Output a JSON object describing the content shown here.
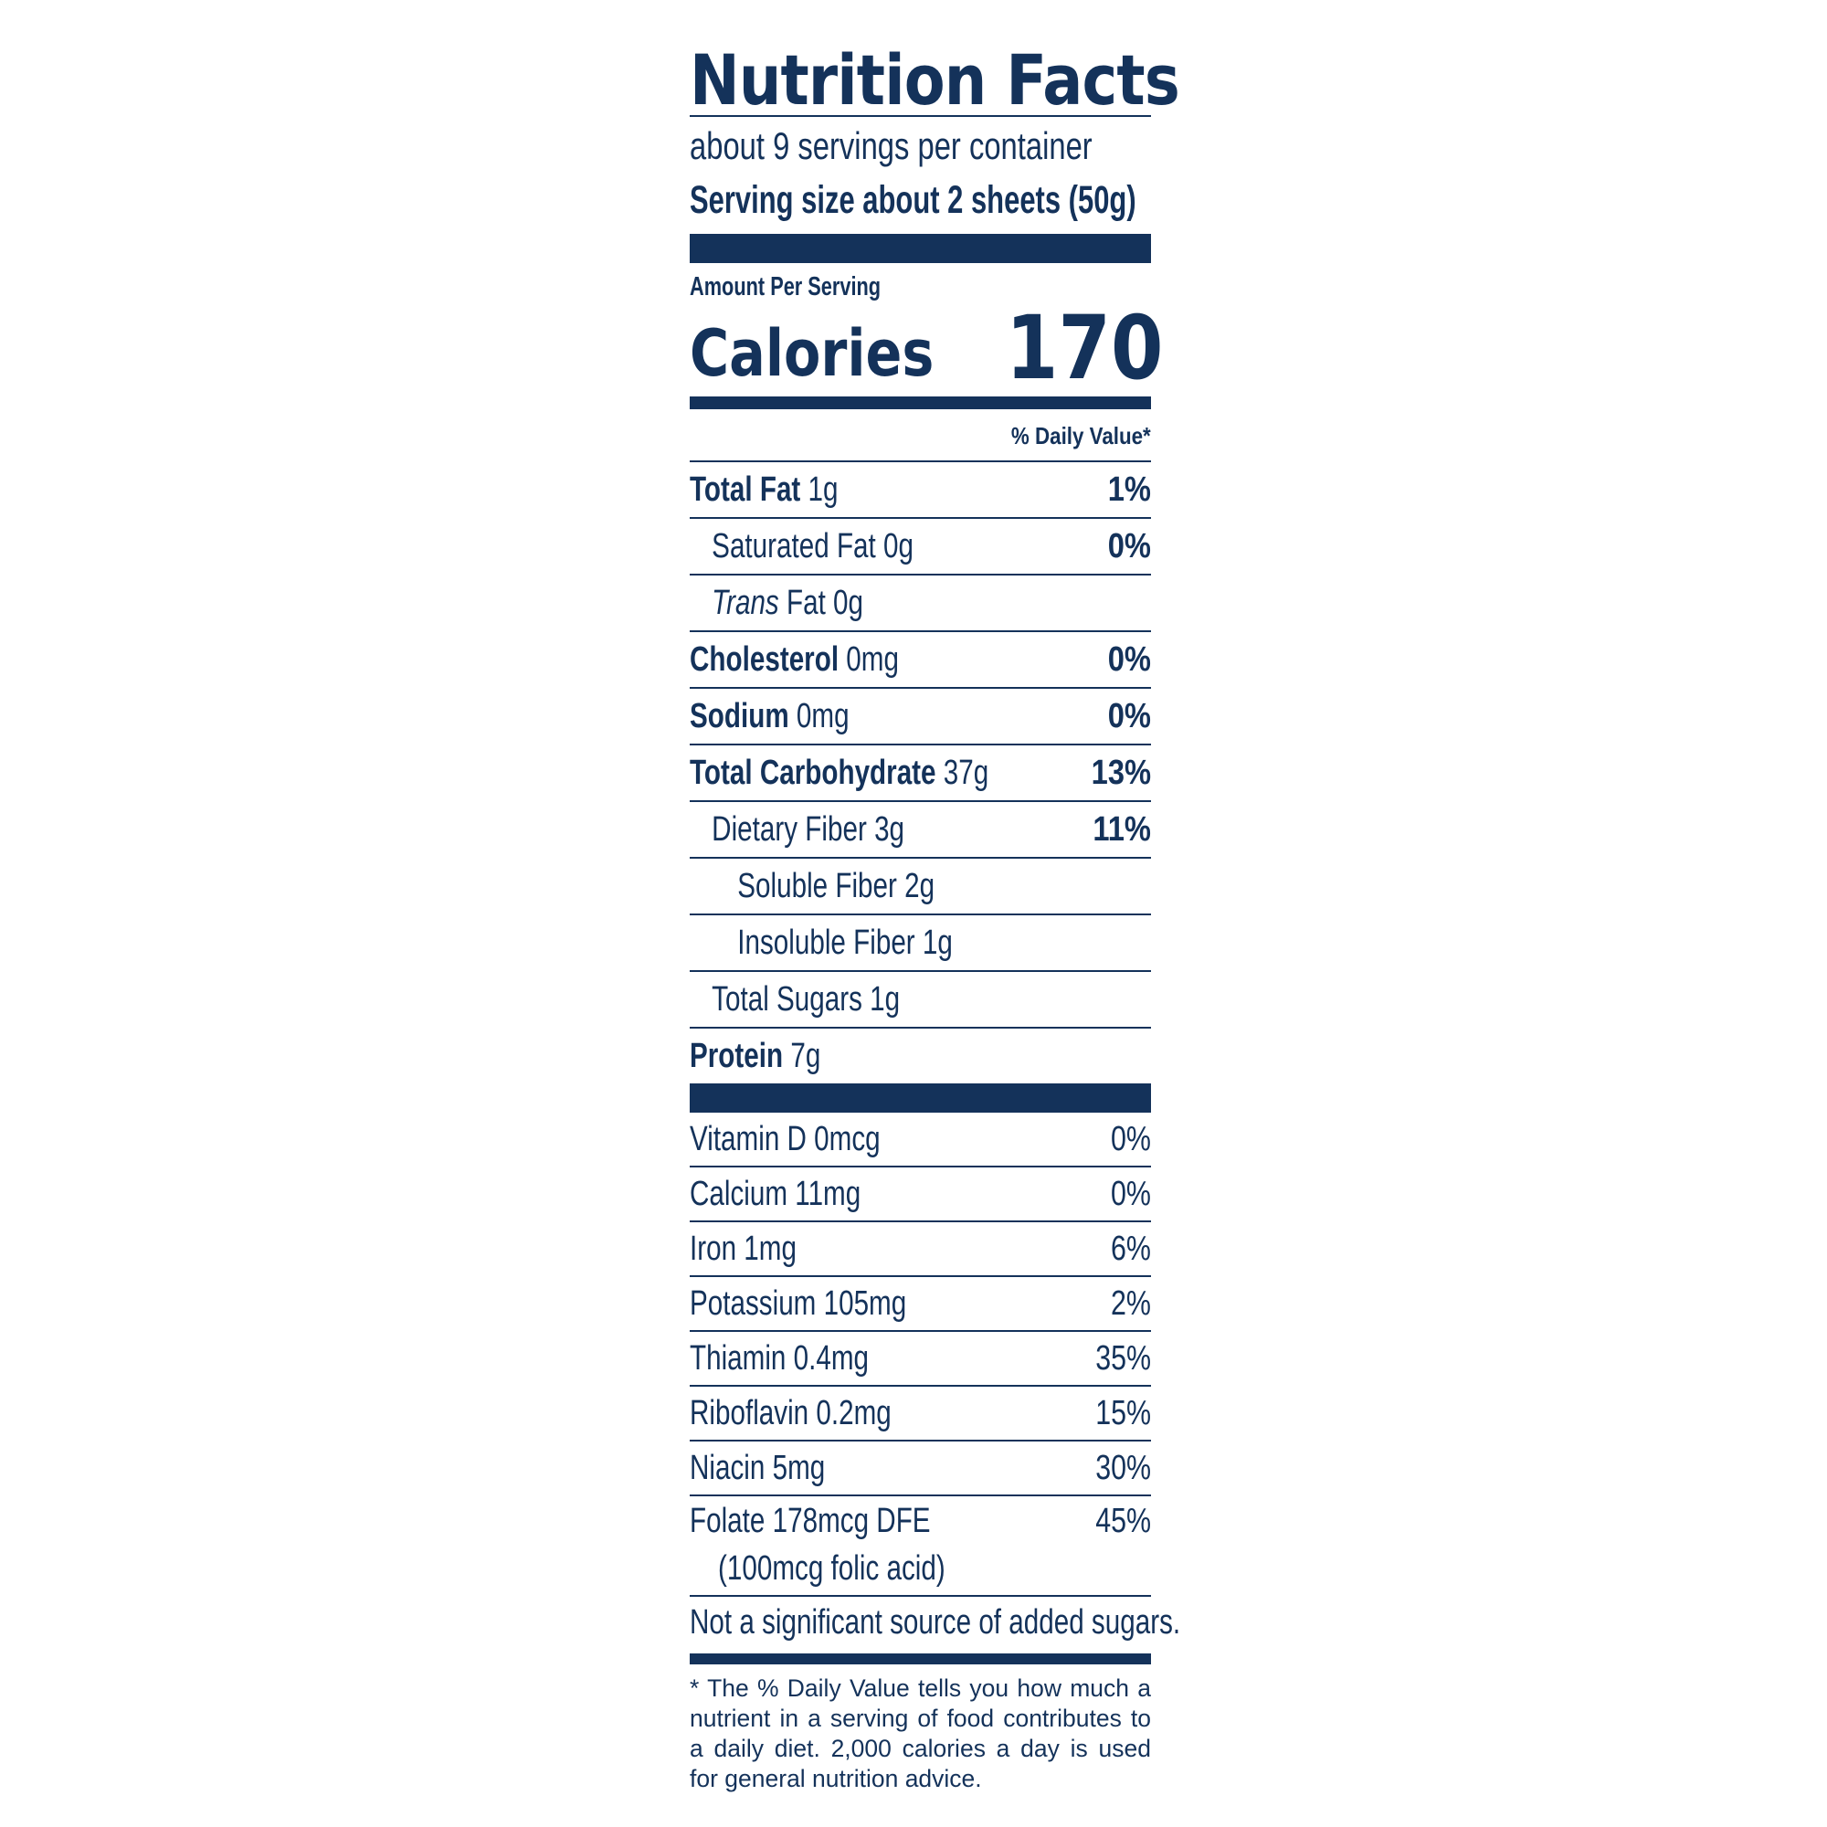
{
  "title": "Nutrition Facts",
  "servings_per_container": "about 9 servings per container",
  "serving_size": "Serving size about 2 sheets (50g)",
  "amount_per_serving": "Amount Per Serving",
  "calories": {
    "label": "Calories",
    "value": "170"
  },
  "daily_value_header": "% Daily Value*",
  "nutrients": [
    {
      "name": "Total Fat",
      "amount": "1g",
      "dv": "1%"
    },
    {
      "name": "Saturated Fat",
      "amount": "0g",
      "dv": "0%"
    },
    {
      "name": "Trans",
      "amount": "Fat 0g",
      "dv": ""
    },
    {
      "name": "Cholesterol",
      "amount": "0mg",
      "dv": "0%"
    },
    {
      "name": "Sodium",
      "amount": "0mg",
      "dv": "0%"
    },
    {
      "name": "Total Carbohydrate",
      "amount": "37g",
      "dv": "13%"
    },
    {
      "name": "Dietary Fiber",
      "amount": "3g",
      "dv": "11%"
    },
    {
      "name": "Soluble Fiber",
      "amount": "2g",
      "dv": ""
    },
    {
      "name": "Insoluble Fiber",
      "amount": "1g",
      "dv": ""
    },
    {
      "name": "Total Sugars",
      "amount": "1g",
      "dv": ""
    },
    {
      "name": "Protein",
      "amount": "7g",
      "dv": ""
    }
  ],
  "vitamins": [
    {
      "label": "Vitamin D 0mcg",
      "dv": "0%"
    },
    {
      "label": "Calcium 11mg",
      "dv": "0%"
    },
    {
      "label": "Iron 1mg",
      "dv": "6%"
    },
    {
      "label": "Potassium 105mg",
      "dv": "2%"
    },
    {
      "label": "Thiamin 0.4mg",
      "dv": "35%"
    },
    {
      "label": "Riboflavin 0.2mg",
      "dv": "15%"
    },
    {
      "label": "Niacin 5mg",
      "dv": "30%"
    }
  ],
  "folate": {
    "label": "Folate 178mcg DFE",
    "sub": "(100mcg folic acid)",
    "dv": "45%"
  },
  "added_sugars_note": "Not a significant source of added sugars.",
  "footnote": "* The % Daily Value tells you how much a nutrient in a serving of food contributes to a daily diet. 2,000 calories a day is used for general nutrition advice.",
  "colors": {
    "ink": "#14325a",
    "background": "#ffffff"
  }
}
